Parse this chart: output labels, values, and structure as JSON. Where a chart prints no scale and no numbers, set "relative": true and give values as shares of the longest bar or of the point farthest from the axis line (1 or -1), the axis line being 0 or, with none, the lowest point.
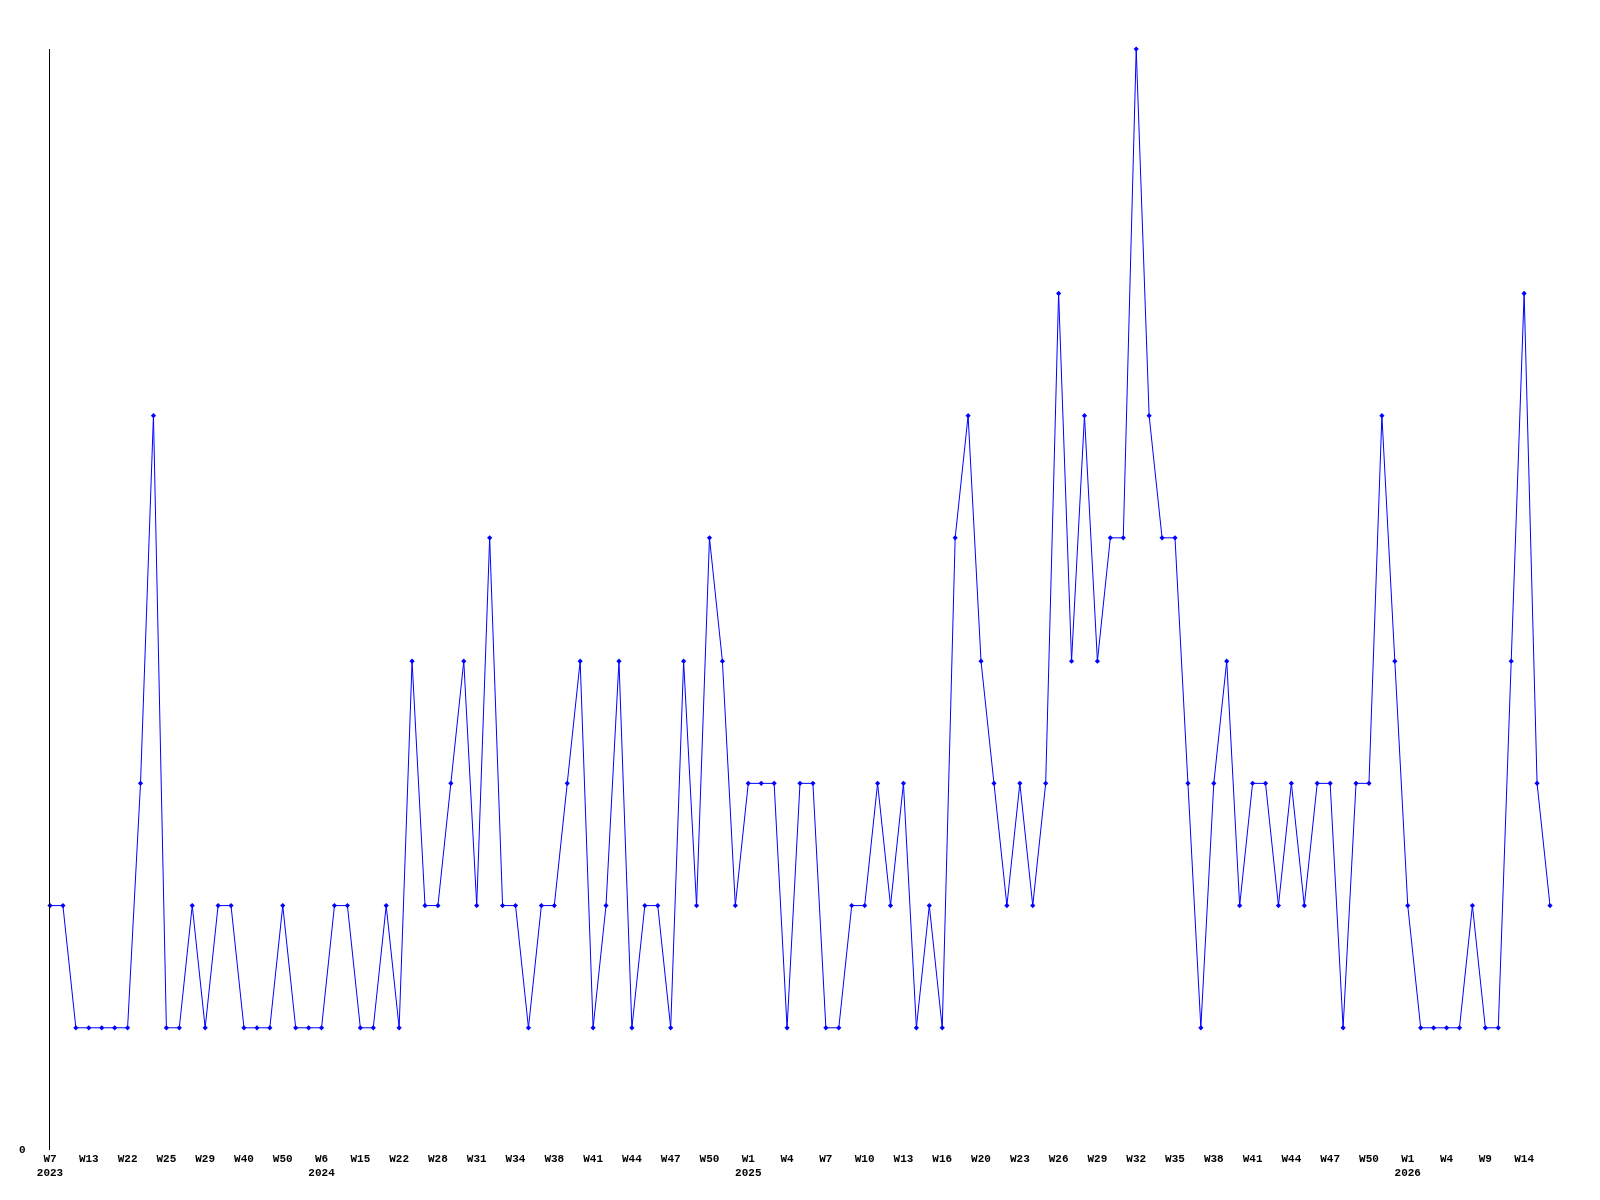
{
  "chart_data": {
    "type": "line",
    "relative": true,
    "marker": "diamond",
    "line_style": "solid",
    "annotations": [
      "0"
    ],
    "categories": [
      "W7\n2023",
      null,
      null,
      "W13",
      null,
      null,
      "W22",
      null,
      null,
      "W25",
      null,
      null,
      "W29",
      null,
      null,
      "W40",
      null,
      null,
      "W50",
      null,
      null,
      "W6\n2024",
      null,
      null,
      "W15",
      null,
      null,
      "W22",
      null,
      null,
      "W28",
      null,
      null,
      "W31",
      null,
      null,
      "W34",
      null,
      null,
      "W38",
      null,
      null,
      "W41",
      null,
      null,
      "W44",
      null,
      null,
      "W47",
      null,
      null,
      "W50",
      null,
      null,
      "W1\n2025",
      null,
      null,
      "W4",
      null,
      null,
      "W7",
      null,
      null,
      "W10",
      null,
      null,
      "W13",
      null,
      null,
      "W16",
      null,
      null,
      "W20",
      null,
      null,
      "W23",
      null,
      null,
      "W26",
      null,
      null,
      "W29",
      null,
      null,
      "W32",
      null,
      null,
      "W35",
      null,
      null,
      "W38",
      null,
      null,
      "W41",
      null,
      null,
      "W44",
      null,
      null,
      "W47",
      null,
      null,
      "W50",
      null,
      null,
      "W1\n2026",
      null,
      null,
      "W4",
      null,
      null,
      "W9",
      null,
      null,
      "W14",
      null,
      null
    ],
    "series": [
      {
        "color": "#0000ff",
        "values": [
          0.222,
          0.222,
          0.111,
          0.111,
          0.111,
          0.111,
          0.111,
          0.333,
          0.667,
          0.111,
          0.111,
          0.222,
          0.111,
          0.222,
          0.222,
          0.111,
          0.111,
          0.111,
          0.222,
          0.111,
          0.111,
          0.111,
          0.222,
          0.222,
          0.111,
          0.111,
          0.222,
          0.111,
          0.444,
          0.222,
          0.222,
          0.333,
          0.444,
          0.222,
          0.556,
          0.222,
          0.222,
          0.111,
          0.222,
          0.222,
          0.333,
          0.444,
          0.111,
          0.222,
          0.444,
          0.111,
          0.222,
          0.222,
          0.111,
          0.444,
          0.222,
          0.556,
          0.444,
          0.222,
          0.333,
          0.333,
          0.333,
          0.111,
          0.333,
          0.333,
          0.111,
          0.111,
          0.222,
          0.222,
          0.333,
          0.222,
          0.333,
          0.111,
          0.222,
          0.111,
          0.556,
          0.667,
          0.444,
          0.333,
          0.222,
          0.333,
          0.222,
          0.333,
          0.778,
          0.444,
          0.667,
          0.444,
          0.556,
          0.556,
          1,
          0.667,
          0.556,
          0.556,
          0.333,
          0.111,
          0.333,
          0.444,
          0.222,
          0.333,
          0.333,
          0.222,
          0.333,
          0.222,
          0.333,
          0.333,
          0.111,
          0.333,
          0.333,
          0.667,
          0.444,
          0.222,
          0.111,
          0.111,
          0.111,
          0.111,
          0.222,
          0.111,
          0.111,
          0.444,
          0.778,
          0.333,
          0.222
        ]
      }
    ]
  }
}
